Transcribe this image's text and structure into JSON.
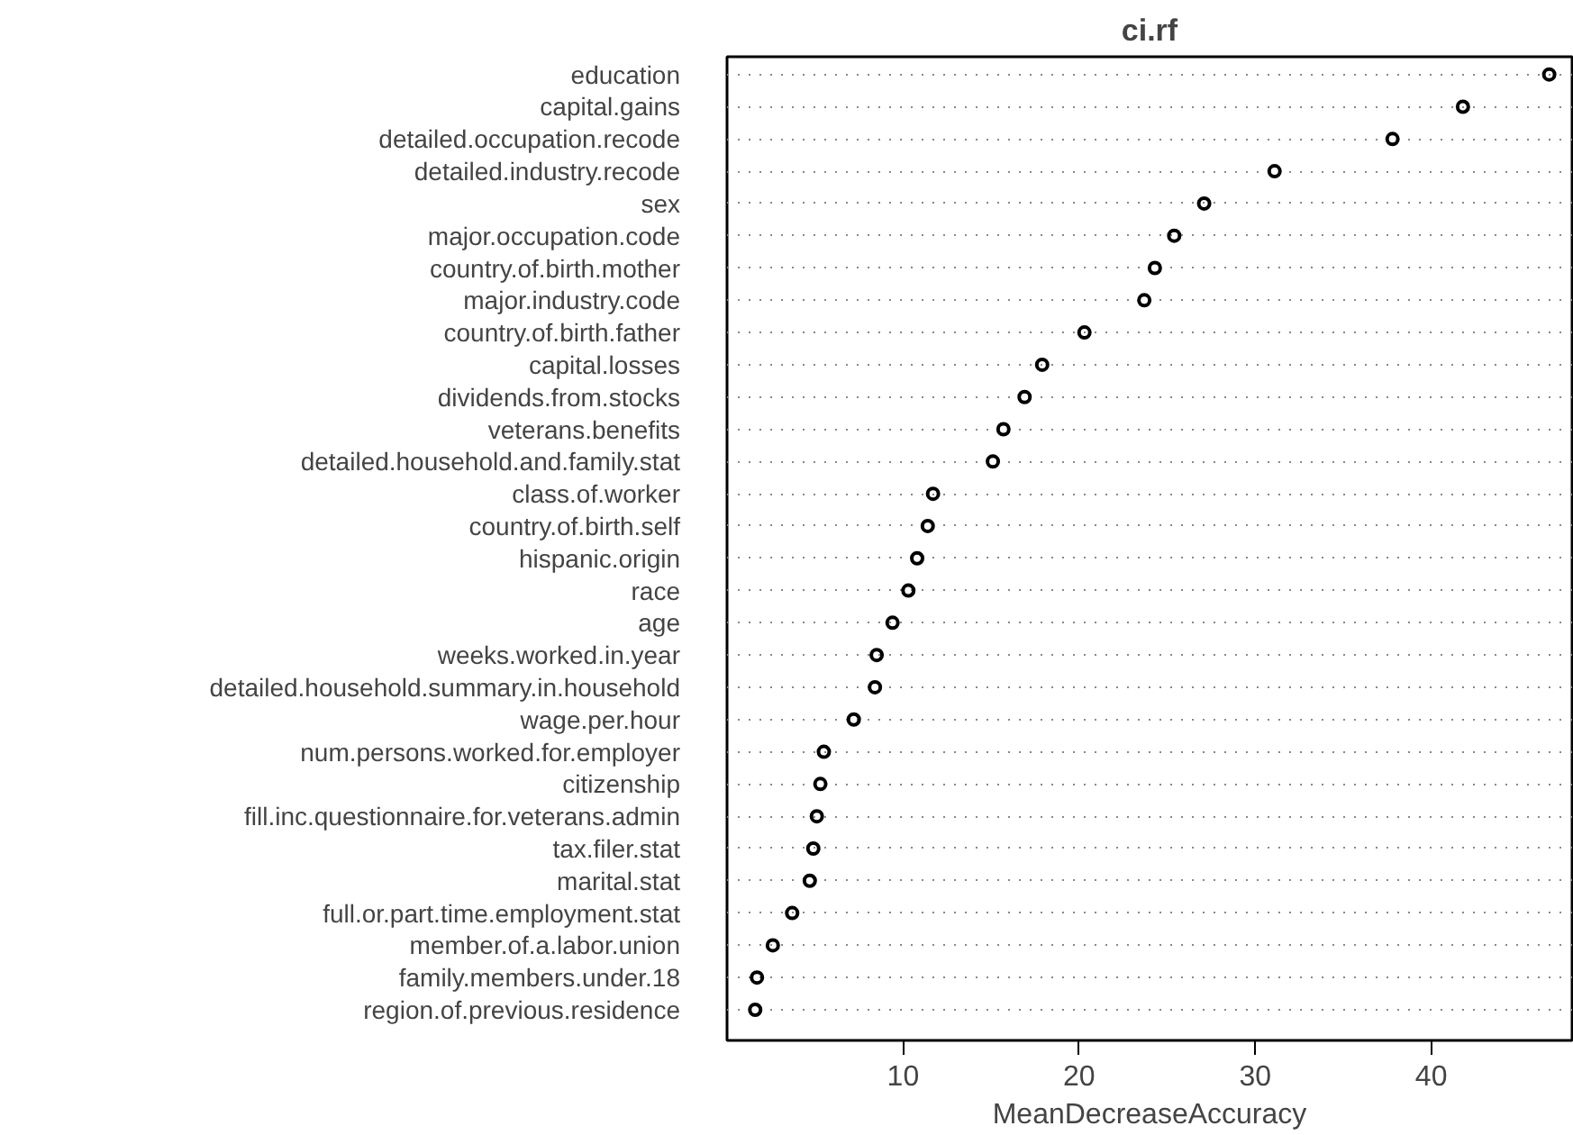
{
  "chart_data": {
    "type": "scatter",
    "orientation": "horizontal",
    "title": "ci.rf",
    "xlabel": "MeanDecreaseAccuracy",
    "categories": [
      "education",
      "capital.gains",
      "detailed.occupation.recode",
      "detailed.industry.recode",
      "sex",
      "major.occupation.code",
      "country.of.birth.mother",
      "major.industry.code",
      "country.of.birth.father",
      "capital.losses",
      "dividends.from.stocks",
      "veterans.benefits",
      "detailed.household.and.family.stat",
      "class.of.worker",
      "country.of.birth.self",
      "hispanic.origin",
      "race",
      "age",
      "weeks.worked.in.year",
      "detailed.household.summary.in.household",
      "wage.per.hour",
      "num.persons.worked.for.employer",
      "citizenship",
      "fill.inc.questionnaire.for.veterans.admin",
      "tax.filer.stat",
      "marital.stat",
      "full.or.part.time.employment.stat",
      "member.of.a.labor.union",
      "family.members.under.18",
      "region.of.previous.residence"
    ],
    "values": [
      46.7,
      41.8,
      37.8,
      31.1,
      27.1,
      25.4,
      24.3,
      23.7,
      20.3,
      17.9,
      16.9,
      15.7,
      15.1,
      11.7,
      11.4,
      10.8,
      10.3,
      9.4,
      8.5,
      8.4,
      7.2,
      5.5,
      5.3,
      5.1,
      4.9,
      4.7,
      3.7,
      2.6,
      1.7,
      1.6
    ],
    "color": "#000000",
    "xlim": [
      0,
      48
    ],
    "xticks": [
      10,
      20,
      30,
      40
    ],
    "grid": "y",
    "line_style": "dotted",
    "marker": "circle"
  }
}
